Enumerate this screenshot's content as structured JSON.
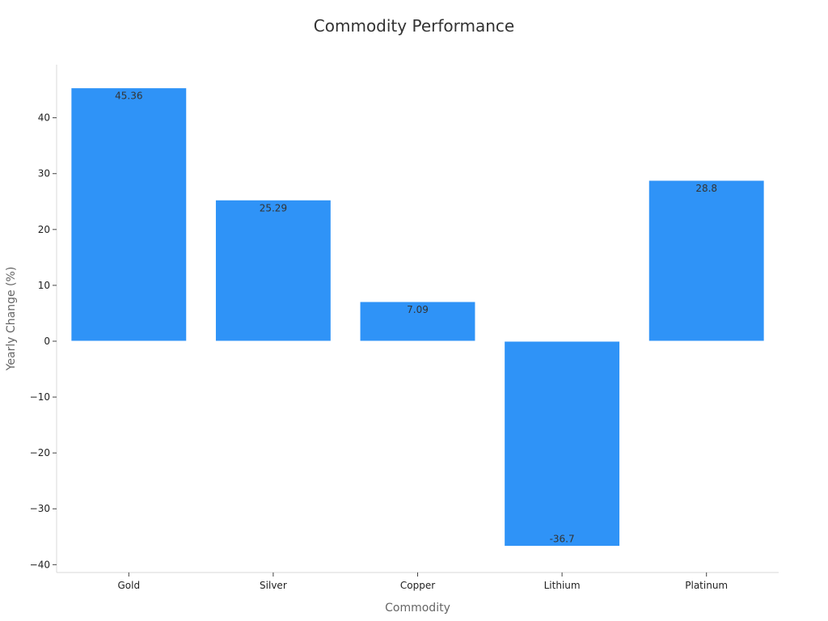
{
  "chart_data": {
    "type": "bar",
    "title": "Commodity Performance",
    "xlabel": "Commodity",
    "ylabel": "Yearly Change (%)",
    "categories": [
      "Gold",
      "Silver",
      "Copper",
      "Lithium",
      "Platinum"
    ],
    "values": [
      45.36,
      25.29,
      7.09,
      -36.7,
      28.8
    ],
    "data_labels": [
      "45.36",
      "25.29",
      "7.09",
      "-36.7",
      "28.8"
    ],
    "ylim": [
      -41.4,
      49.5
    ],
    "yticks": [
      -40,
      -30,
      -20,
      -10,
      0,
      10,
      20,
      30,
      40
    ],
    "ytick_labels": [
      "−40",
      "−30",
      "−20",
      "−10",
      "0",
      "10",
      "20",
      "30",
      "40"
    ],
    "grid": false,
    "legend": "none",
    "bar_color": "#2f93f7"
  }
}
